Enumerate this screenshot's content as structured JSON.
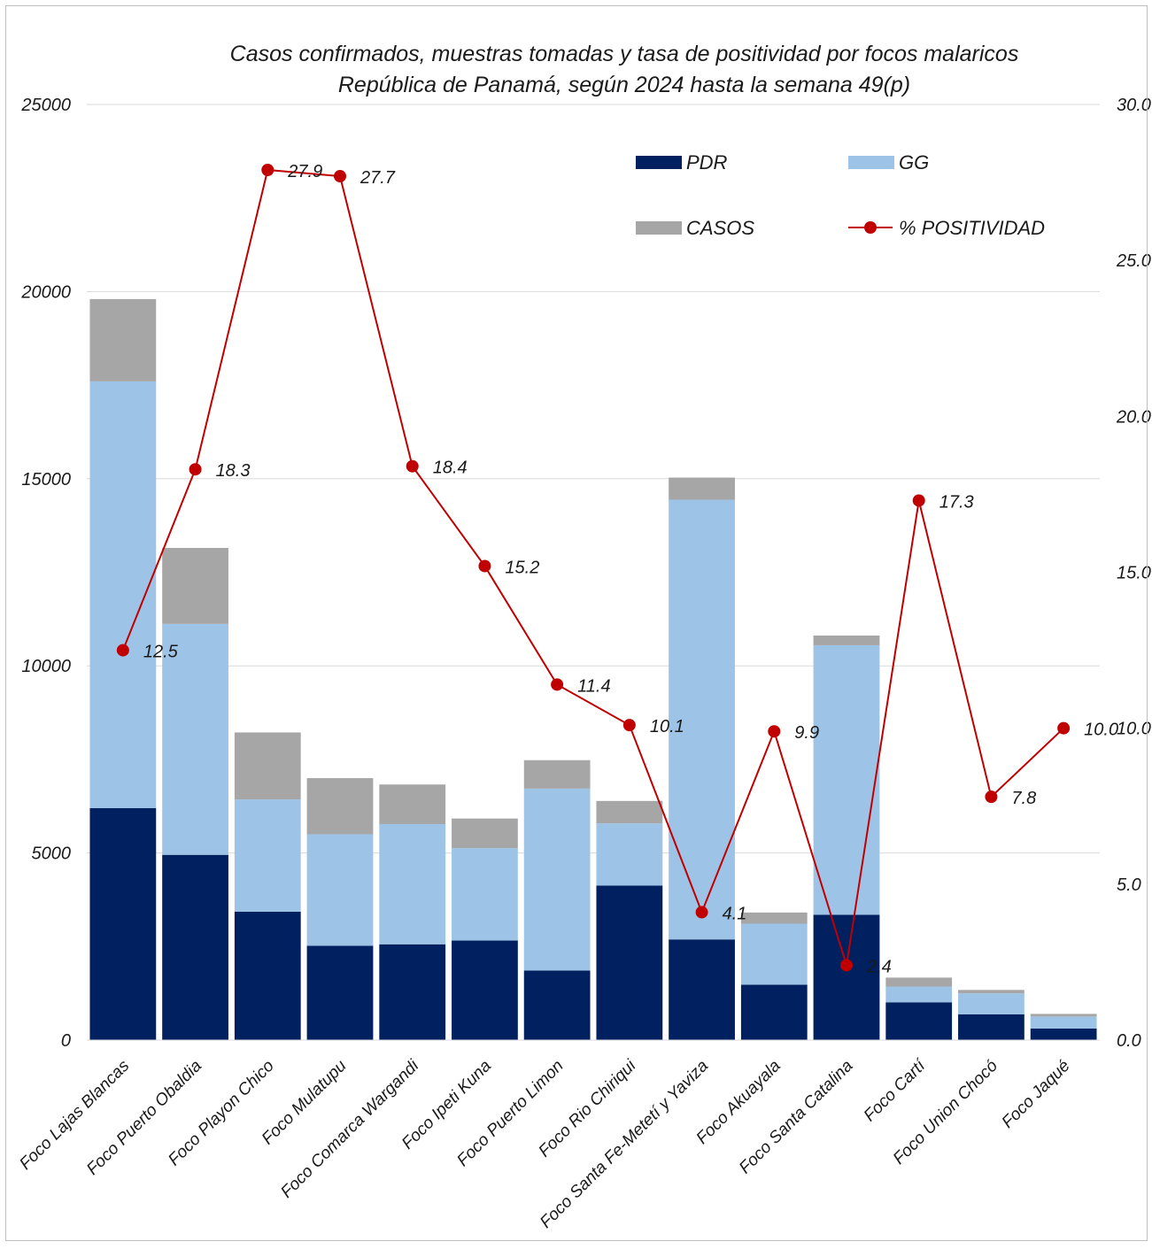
{
  "chart_data": {
    "type": "bar",
    "stacked": true,
    "title": "Casos confirmados, muestras tomadas y  tasa de positividad por focos malaricos",
    "subtitle": "República de Panamá, según 2024 hasta la semana 49(p)",
    "categories": [
      "Foco Lajas Blancas",
      "Foco Puerto Obaldia",
      "Foco Playon Chico",
      "Foco Mulatupu",
      "Foco Comarca Wargandi",
      "Foco Ipeti Kuna",
      "Foco Puerto Limon",
      "Foco Rio Chiriqui",
      "Foco Santa Fe-Metetí y Yaviza",
      "Foco Akuayala",
      "Foco Santa Catalina",
      "Foco Cartí",
      "Foco Union Chocó",
      "Foco Jaqué"
    ],
    "series": [
      {
        "name": "PDR",
        "color": "#002060",
        "axis": "left",
        "values": [
          6200,
          4950,
          3430,
          2520,
          2560,
          2660,
          1860,
          4130,
          2690,
          1480,
          3350,
          1010,
          690,
          310
        ]
      },
      {
        "name": "GG",
        "color": "#9dc3e6",
        "axis": "left",
        "values": [
          11400,
          6170,
          3000,
          2980,
          3210,
          2470,
          4860,
          1660,
          11750,
          1630,
          7200,
          420,
          560,
          320
        ]
      },
      {
        "name": "CASOS",
        "color": "#a6a6a6",
        "axis": "left",
        "values": [
          2200,
          2030,
          1790,
          1500,
          1060,
          790,
          760,
          600,
          590,
          300,
          260,
          240,
          90,
          70
        ]
      },
      {
        "name": "% POSITIVIDAD",
        "color": "#c00000",
        "axis": "right",
        "type": "line",
        "values": [
          12.5,
          18.3,
          27.9,
          27.7,
          18.4,
          15.2,
          11.4,
          10.1,
          4.1,
          9.9,
          2.4,
          17.3,
          7.8,
          10.0
        ],
        "labels": [
          "12.5",
          "18.3",
          "27.9",
          "27.7",
          "18.4",
          "15.2",
          "11.4",
          "10.1",
          "4.1",
          "9.9",
          "2.4",
          "17.3",
          "7.8",
          "10.0"
        ]
      }
    ],
    "y_left": {
      "range": [
        0,
        25000
      ],
      "ticks": [
        "0",
        "5000",
        "10000",
        "15000",
        "20000",
        "25000"
      ]
    },
    "y_right": {
      "range": [
        0,
        30
      ],
      "ticks": [
        "0.0",
        "5.0",
        "10.0",
        "15.0",
        "20.0",
        "25.0",
        "30.0"
      ]
    },
    "legend_placement": "top-right",
    "grid": "horizontal"
  }
}
